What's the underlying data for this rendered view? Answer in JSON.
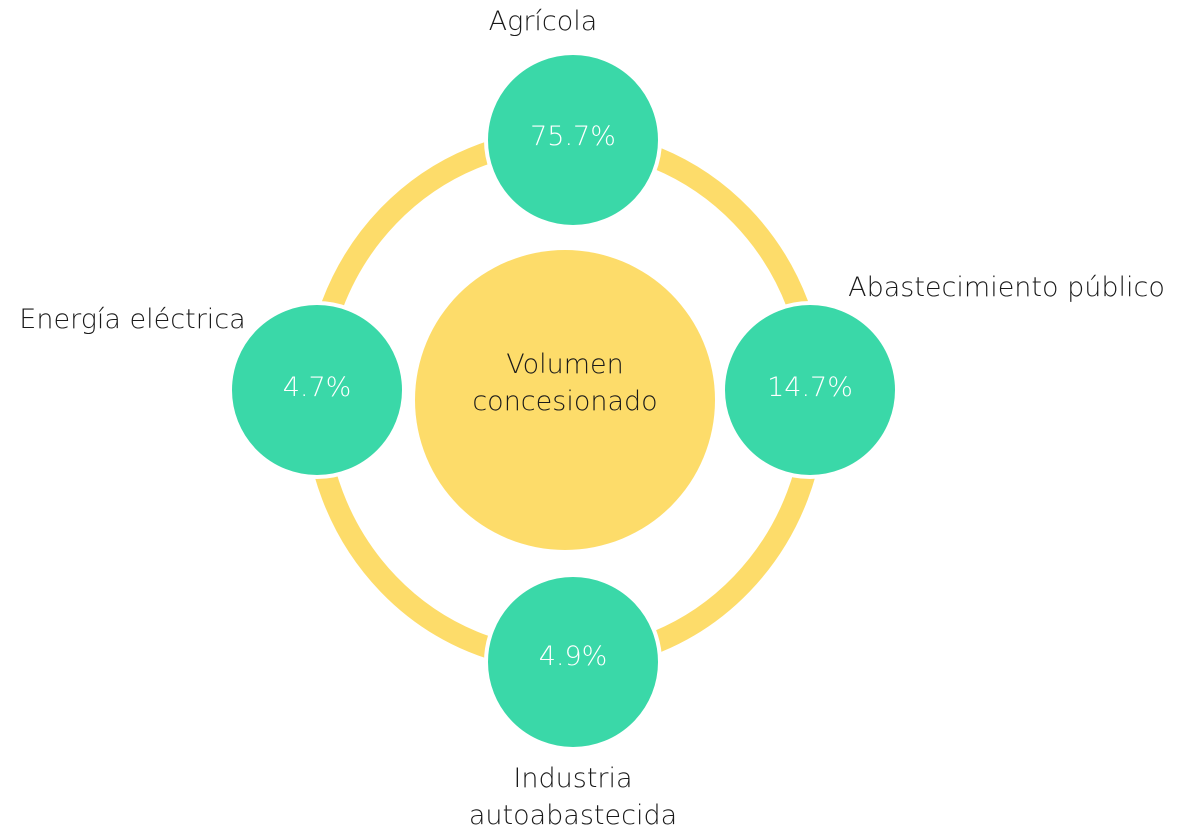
{
  "center": {
    "label": "Volumen concesionado"
  },
  "nodes": [
    {
      "label": "Agrícola",
      "value": "75.7%"
    },
    {
      "label": "Abastecimiento público",
      "value": "14.7%"
    },
    {
      "label": "Industria autoabastecida",
      "value": "4.9%"
    },
    {
      "label": "Energía eléctrica",
      "value": "4.7%"
    }
  ]
}
